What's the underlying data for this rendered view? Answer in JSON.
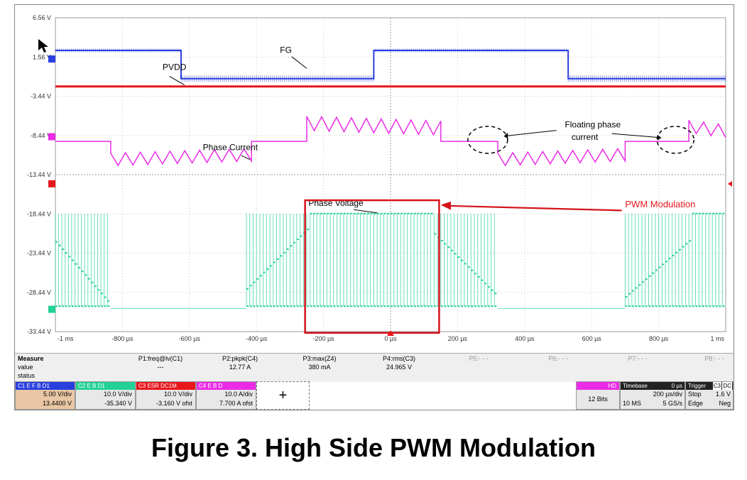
{
  "caption": "Figure 3. High Side PWM Modulation",
  "chart_data": {
    "type": "line",
    "x_unit": "µs",
    "xlim": [
      -1000,
      1000
    ],
    "x_ticks": [
      "-1 ms",
      "-800 µs",
      "-600 µs",
      "-400 µs",
      "-200 µs",
      "0 µs",
      "200 µs",
      "400 µs",
      "600 µs",
      "800 µs",
      "1 ms"
    ],
    "y_ticks": [
      "6.56 V",
      "1.56 V",
      "-3.44 V",
      "-8.44 V",
      "-13.44 V",
      "-18.44 V",
      "-23.44 V",
      "-28.44 V",
      "-33.44 V"
    ],
    "ylim": [
      -33.44,
      6.56
    ],
    "grid": true,
    "series": [
      {
        "name": "FG",
        "color": "#2a3fe0",
        "style": "square",
        "high": 2.4,
        "low": -1.2,
        "transitions_us": [
          -625,
          -50,
          530
        ],
        "start_state": "high"
      },
      {
        "name": "PVDD",
        "color": "#e8161b",
        "style": "flat",
        "level": -2.2
      },
      {
        "name": "Phase Current",
        "color": "#ea2ce6",
        "style": "trapezoid-ripple",
        "segments": [
          {
            "from": -1000,
            "to": -835,
            "level": -9.2,
            "ripple": 0
          },
          {
            "from": -835,
            "to": -415,
            "level": -11.2,
            "ripple": 1.6
          },
          {
            "from": -415,
            "to": -250,
            "level": -9.2,
            "ripple": 0
          },
          {
            "from": -250,
            "to": 150,
            "level": -7.2,
            "ripple": 1.8
          },
          {
            "from": 150,
            "to": 320,
            "level": -9.2,
            "ripple": 0
          },
          {
            "from": 320,
            "to": 700,
            "level": -11.2,
            "ripple": 1.6
          },
          {
            "from": 700,
            "to": 890,
            "level": -9.2,
            "ripple": 0
          },
          {
            "from": 890,
            "to": 1000,
            "level": -7.6,
            "ripple": 1.6
          }
        ]
      },
      {
        "name": "Phase Voltage",
        "color": "#22d296",
        "style": "pwm",
        "pwm_high": -18.4,
        "pwm_low": -30.2,
        "floor": -30.5,
        "segments": [
          {
            "from": -1000,
            "to": -835,
            "mode": "falling",
            "start": -22.0,
            "end": -30.0
          },
          {
            "from": -835,
            "to": -430,
            "mode": "off"
          },
          {
            "from": -430,
            "to": -240,
            "mode": "rising",
            "start": -28.0,
            "end": -20.0
          },
          {
            "from": -240,
            "to": 130,
            "mode": "full"
          },
          {
            "from": 130,
            "to": 320,
            "mode": "falling",
            "start": -21.0,
            "end": -29.0
          },
          {
            "from": 320,
            "to": 700,
            "mode": "off"
          },
          {
            "from": 700,
            "to": 900,
            "mode": "rising",
            "start": -29.0,
            "end": -21.5
          },
          {
            "from": 900,
            "to": 1000,
            "mode": "full"
          }
        ]
      }
    ],
    "annotations": [
      {
        "text": "FG",
        "x_us": -330,
        "y": 2.1,
        "color": "#000000"
      },
      {
        "text": "PVDD",
        "x_us": -680,
        "y": -0.1,
        "color": "#000000"
      },
      {
        "text": "Phase Current",
        "x_us": -560,
        "y": -10.3,
        "color": "#000000"
      },
      {
        "text": "Floating phase",
        "x_us": 520,
        "y": -7.4,
        "color": "#000000"
      },
      {
        "text": "current",
        "x_us": 540,
        "y": -9.0,
        "color": "#000000"
      },
      {
        "text": "Phase Voltage",
        "x_us": -245,
        "y": -17.4,
        "color": "#000000"
      },
      {
        "text": "PWM Modulation",
        "x_us": 700,
        "y": -17.6,
        "color": "#e8161b"
      }
    ]
  },
  "measure": {
    "title": "Measure",
    "labels": [
      "value",
      "status"
    ],
    "params": [
      {
        "name": "P1:freq@lv(C1)",
        "value": "---"
      },
      {
        "name": "P2:pkpk(C4)",
        "value": "12.77 A"
      },
      {
        "name": "P3:max(Z4)",
        "value": "380 mA"
      },
      {
        "name": "P4:rms(C3)",
        "value": "24.965 V"
      },
      {
        "name": "P5:- - -",
        "value": ""
      },
      {
        "name": "P6:- - -",
        "value": ""
      },
      {
        "name": "P7:- - -",
        "value": ""
      },
      {
        "name": "P8:- - -",
        "value": ""
      }
    ]
  },
  "channels": [
    {
      "id": "C1",
      "flags": "E F B D1",
      "line1": "5.00 V/div",
      "line2": "13.4400 V",
      "color": "#2a3fe0"
    },
    {
      "id": "C2",
      "flags": "E B D1",
      "line1": "10.0 V/div",
      "line2": "-35.340 V",
      "color": "#22d296"
    },
    {
      "id": "C3",
      "flags": "ESR DC1M",
      "line1": "10.0 V/div",
      "line2": "-3.160 V ofst",
      "color": "#e8161b"
    },
    {
      "id": "C4",
      "flags": "E B D",
      "line1": "10.0 A/div",
      "line2": "7.700 A ofst",
      "color": "#ea2ce6"
    }
  ],
  "plus_label": "+",
  "hd": {
    "label": "HD",
    "bits": "12 Bits"
  },
  "timebase": {
    "label": "Timebase",
    "delay": "0 µs",
    "div": "200 µs/div",
    "samples": "10 MS",
    "rate": "5 GS/s"
  },
  "trigger": {
    "label": "Trigger",
    "channel": "C3",
    "coupling": "DC",
    "mode": "Stop",
    "level": "1.6 V",
    "type": "Edge",
    "slope": "Neg"
  }
}
